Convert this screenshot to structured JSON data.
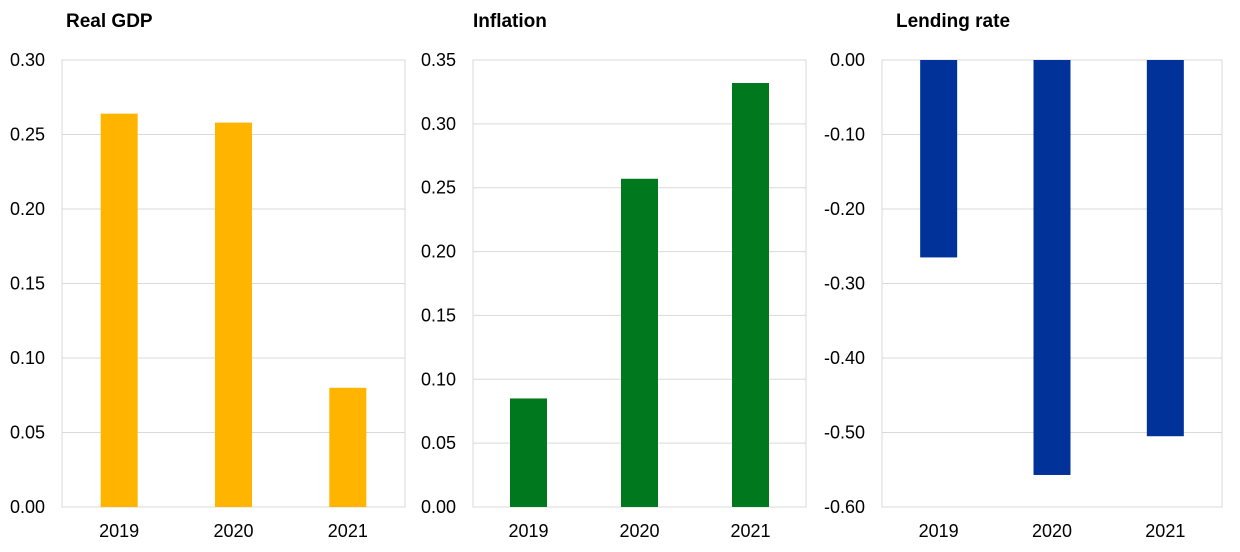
{
  "chart_data": [
    {
      "type": "bar",
      "title": "Real GDP",
      "categories": [
        "2019",
        "2020",
        "2021"
      ],
      "values": [
        0.264,
        0.258,
        0.08
      ],
      "ylim": [
        0,
        0.3
      ],
      "yticks": [
        "0.00",
        "0.05",
        "0.10",
        "0.15",
        "0.20",
        "0.25",
        "0.30"
      ],
      "ytick_values": [
        0,
        0.05,
        0.1,
        0.15,
        0.2,
        0.25,
        0.3
      ],
      "color": "#ffb400",
      "grid": true
    },
    {
      "type": "bar",
      "title": "Inflation",
      "categories": [
        "2019",
        "2020",
        "2021"
      ],
      "values": [
        0.085,
        0.257,
        0.332
      ],
      "ylim": [
        0,
        0.35
      ],
      "yticks": [
        "0.00",
        "0.05",
        "0.10",
        "0.15",
        "0.20",
        "0.25",
        "0.30",
        "0.35"
      ],
      "ytick_values": [
        0,
        0.05,
        0.1,
        0.15,
        0.2,
        0.25,
        0.3,
        0.35
      ],
      "color": "#00781e",
      "grid": true
    },
    {
      "type": "bar",
      "title": "Lending rate",
      "categories": [
        "2019",
        "2020",
        "2021"
      ],
      "values": [
        -0.265,
        -0.557,
        -0.505
      ],
      "ylim": [
        -0.6,
        0
      ],
      "yticks": [
        "0.00",
        "-0.10",
        "-0.20",
        "-0.30",
        "-0.40",
        "-0.50",
        "-0.60"
      ],
      "ytick_values": [
        0,
        -0.1,
        -0.2,
        -0.3,
        -0.4,
        -0.5,
        -0.6
      ],
      "color": "#003299",
      "grid": true
    }
  ]
}
